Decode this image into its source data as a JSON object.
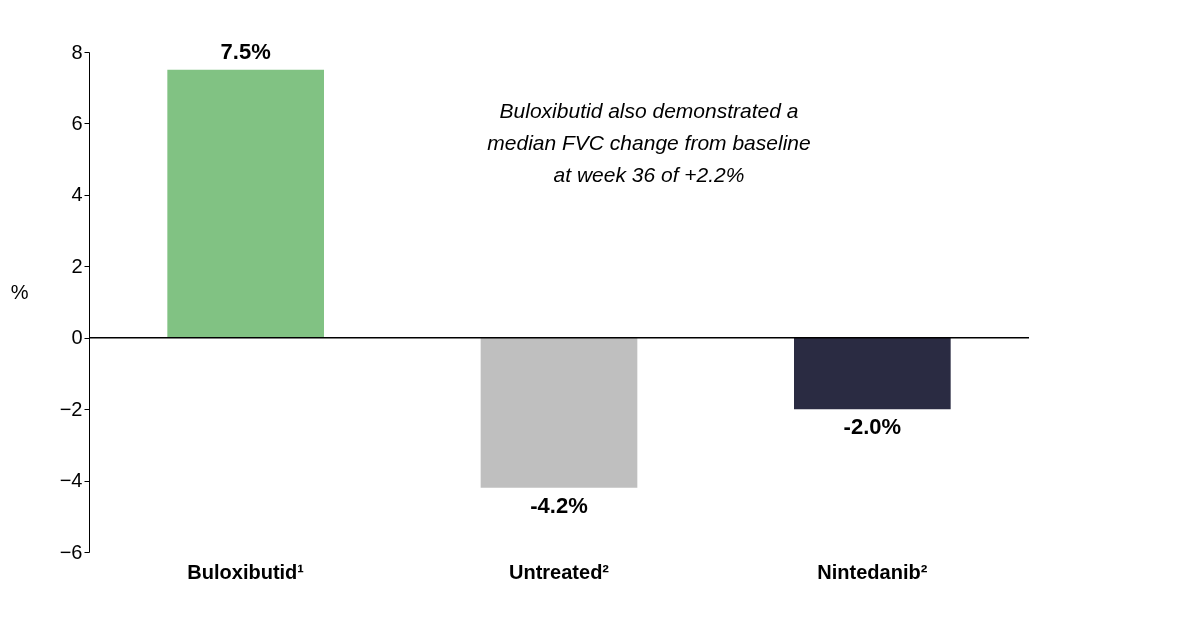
{
  "chart_data": {
    "type": "bar",
    "categories": [
      "Buloxibutid¹",
      "Untreated²",
      "Nintedanib²"
    ],
    "values": [
      7.5,
      -4.2,
      -2.0
    ],
    "colors": [
      "#81c283",
      "#bfbfbf",
      "#2a2b42"
    ],
    "value_labels": [
      "7.5%",
      "-4.2%",
      "-2.0%"
    ],
    "ylabel": "%",
    "ylim": [
      -6,
      8
    ],
    "yticks": [
      -6,
      -4,
      -2,
      0,
      2,
      4,
      6,
      8
    ],
    "grid": false,
    "ref_lines": [
      {
        "axis": "y",
        "value": 0,
        "color": "#000000"
      }
    ],
    "annotations": [
      "Buloxibutid also demonstrated a median FVC change from baseline at week 36 of +2.2%"
    ]
  }
}
